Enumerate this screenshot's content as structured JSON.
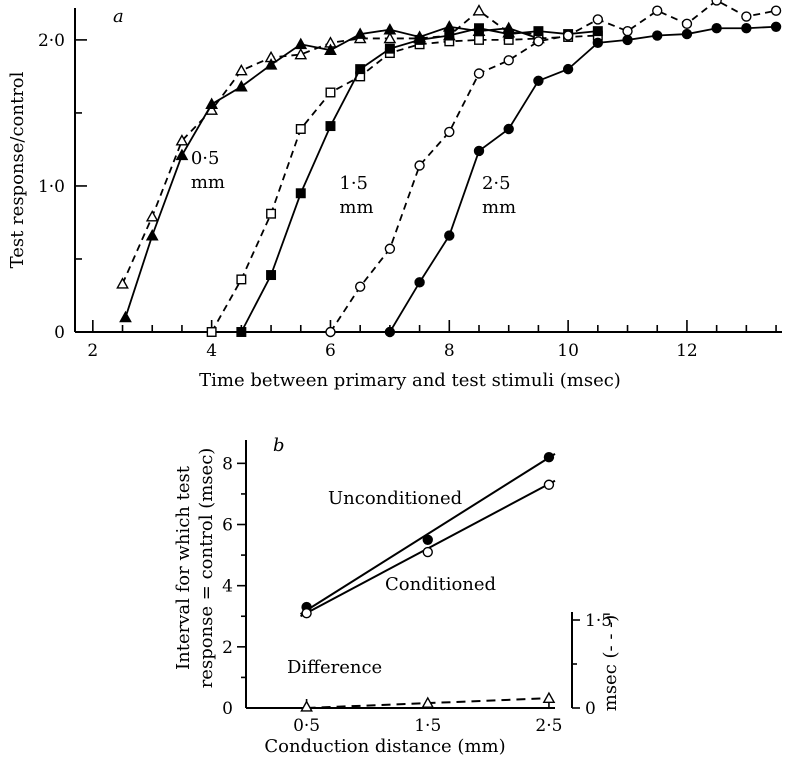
{
  "chart_data": [
    {
      "panel": "a",
      "type": "line",
      "xlabel": "Time between primary and test stimuli (msec)",
      "ylabel": "Test response/control",
      "xlim": [
        1.7,
        13.6
      ],
      "ylim": [
        0,
        2.15
      ],
      "xticks": [
        2,
        4,
        6,
        8,
        10,
        12
      ],
      "yticks": [
        {
          "v": 0,
          "t": "0"
        },
        {
          "v": 1,
          "t": "1·0"
        },
        {
          "v": 2,
          "t": "2·0"
        }
      ],
      "annotations": [
        {
          "lines": [
            "0·5",
            "mm"
          ],
          "x": 3.65,
          "y": 1.15
        },
        {
          "lines": [
            "1·5",
            "mm"
          ],
          "x": 6.15,
          "y": 0.98
        },
        {
          "lines": [
            "2·5",
            "mm"
          ],
          "x": 8.55,
          "y": 0.98
        }
      ],
      "series": [
        {
          "marker": "triangle-open",
          "dashed": true,
          "points": [
            [
              2.5,
              0.33
            ],
            [
              3.0,
              0.79
            ],
            [
              3.5,
              1.31
            ],
            [
              4.0,
              1.52
            ],
            [
              4.5,
              1.79
            ],
            [
              5.0,
              1.88
            ],
            [
              5.5,
              1.9
            ],
            [
              6.0,
              1.98
            ],
            [
              6.5,
              2.01
            ],
            [
              7.0,
              2.01
            ],
            [
              7.5,
              2.01
            ],
            [
              8.0,
              2.03
            ],
            [
              8.5,
              2.2
            ],
            [
              9.0,
              2.05
            ],
            [
              9.5,
              2.04
            ]
          ]
        },
        {
          "marker": "triangle-filled",
          "dashed": false,
          "points": [
            [
              2.55,
              0.1
            ],
            [
              3.0,
              0.66
            ],
            [
              3.5,
              1.21
            ],
            [
              4.0,
              1.56
            ],
            [
              4.5,
              1.68
            ],
            [
              5.0,
              1.83
            ],
            [
              5.5,
              1.97
            ],
            [
              6.0,
              1.93
            ],
            [
              6.5,
              2.04
            ],
            [
              7.0,
              2.07
            ],
            [
              7.5,
              2.02
            ],
            [
              8.0,
              2.09
            ],
            [
              8.5,
              2.06
            ],
            [
              9.0,
              2.08
            ],
            [
              9.5,
              2.01
            ]
          ]
        },
        {
          "marker": "square-open",
          "dashed": true,
          "points": [
            [
              4.0,
              0.0
            ],
            [
              4.5,
              0.36
            ],
            [
              5.0,
              0.81
            ],
            [
              5.5,
              1.39
            ],
            [
              6.0,
              1.64
            ],
            [
              6.5,
              1.75
            ],
            [
              7.0,
              1.91
            ],
            [
              7.5,
              1.97
            ],
            [
              8.0,
              1.99
            ],
            [
              8.5,
              2.0
            ],
            [
              9.0,
              2.0
            ],
            [
              9.5,
              2.01
            ],
            [
              10.0,
              2.02
            ],
            [
              10.5,
              2.03
            ]
          ]
        },
        {
          "marker": "square-filled",
          "dashed": false,
          "points": [
            [
              4.5,
              0.0
            ],
            [
              5.0,
              0.39
            ],
            [
              5.5,
              0.95
            ],
            [
              6.0,
              1.41
            ],
            [
              6.5,
              1.8
            ],
            [
              7.0,
              1.94
            ],
            [
              7.5,
              2.0
            ],
            [
              8.0,
              2.03
            ],
            [
              8.5,
              2.08
            ],
            [
              9.0,
              2.04
            ],
            [
              9.5,
              2.06
            ],
            [
              10.0,
              2.04
            ],
            [
              10.5,
              2.06
            ]
          ]
        },
        {
          "marker": "circle-open",
          "dashed": true,
          "points": [
            [
              6.0,
              0.0
            ],
            [
              6.5,
              0.31
            ],
            [
              7.0,
              0.57
            ],
            [
              7.5,
              1.14
            ],
            [
              8.0,
              1.37
            ],
            [
              8.5,
              1.77
            ],
            [
              9.0,
              1.86
            ],
            [
              9.5,
              1.99
            ],
            [
              10.0,
              2.03
            ],
            [
              10.5,
              2.14
            ],
            [
              11.0,
              2.06
            ],
            [
              11.5,
              2.2
            ],
            [
              12.0,
              2.11
            ],
            [
              12.5,
              2.27
            ],
            [
              13.0,
              2.16
            ],
            [
              13.5,
              2.2
            ]
          ]
        },
        {
          "marker": "circle-filled",
          "dashed": false,
          "points": [
            [
              7.0,
              0.0
            ],
            [
              7.5,
              0.34
            ],
            [
              8.0,
              0.66
            ],
            [
              8.5,
              1.24
            ],
            [
              9.0,
              1.39
            ],
            [
              9.5,
              1.72
            ],
            [
              10.0,
              1.8
            ],
            [
              10.5,
              1.98
            ],
            [
              11.0,
              2.0
            ],
            [
              11.5,
              2.03
            ],
            [
              12.0,
              2.04
            ],
            [
              12.5,
              2.08
            ],
            [
              13.0,
              2.08
            ],
            [
              13.5,
              2.09
            ]
          ]
        }
      ]
    },
    {
      "panel": "b",
      "type": "scatter",
      "xlabel": "Conduction distance (mm)",
      "ylabel": [
        "Interval for which test",
        "response = control (msec)"
      ],
      "y2label": "msec (- - -)",
      "xlim": [
        0,
        2.55
      ],
      "ylim": [
        0,
        8.6
      ],
      "xticks": [
        {
          "v": 0.5,
          "t": "0·5"
        },
        {
          "v": 1.5,
          "t": "1·5"
        },
        {
          "v": 2.5,
          "t": "2·5"
        }
      ],
      "yticks": [
        0,
        2,
        4,
        6,
        8
      ],
      "y2lim": [
        0,
        1.5
      ],
      "y2ticks": [
        {
          "v": 0,
          "t": "0"
        },
        {
          "v": 1.5,
          "t": "1·5"
        }
      ],
      "series": [
        {
          "name": "Unconditioned",
          "marker": "circle-filled",
          "dashed": false,
          "x": [
            0.5,
            1.5,
            2.5
          ],
          "y": [
            3.3,
            5.5,
            8.2
          ],
          "fit": [
            [
              0.45,
              3.07
            ],
            [
              2.55,
              8.31
            ]
          ]
        },
        {
          "name": "Conditioned",
          "marker": "circle-open",
          "dashed": false,
          "x": [
            0.5,
            1.5,
            2.5
          ],
          "y": [
            3.1,
            5.1,
            7.3
          ],
          "fit": [
            [
              0.45,
              3.0
            ],
            [
              2.55,
              7.43
            ]
          ]
        },
        {
          "name": "Difference",
          "marker": "triangle-open",
          "dashed": true,
          "axis": "right",
          "x": [
            0.5,
            1.5,
            2.5
          ],
          "y": [
            0.04,
            0.16,
            0.32
          ],
          "fit": [
            [
              0.5,
              0.0
            ],
            [
              2.5,
              0.32
            ]
          ]
        }
      ]
    }
  ]
}
